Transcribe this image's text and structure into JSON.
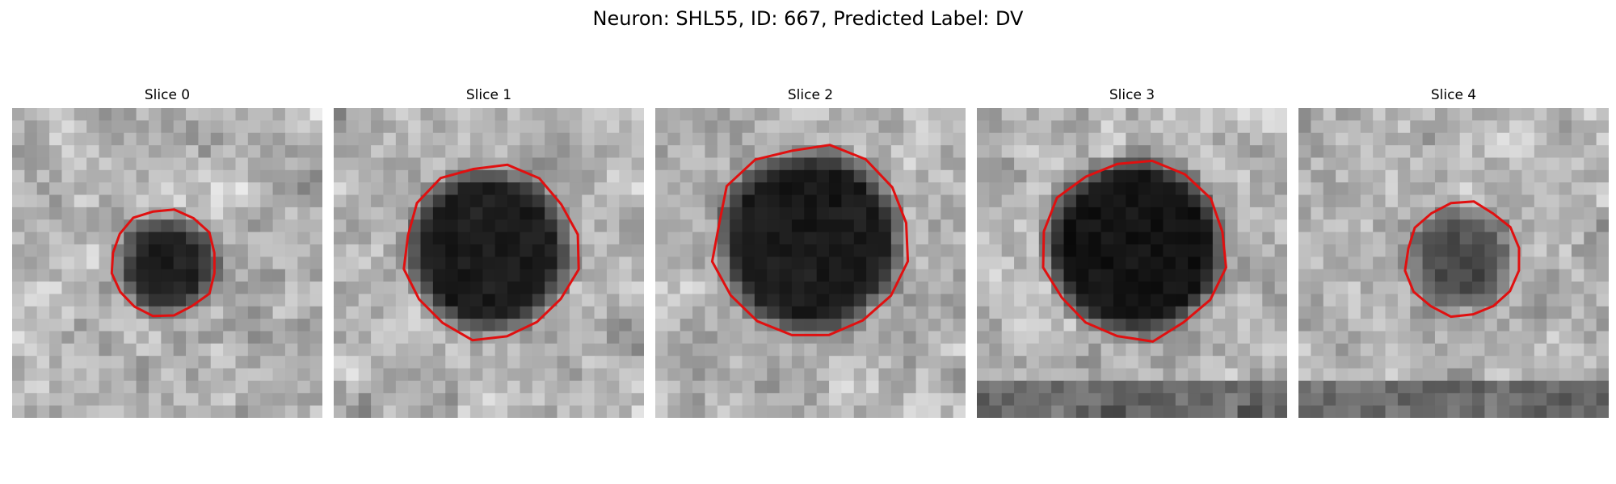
{
  "figure": {
    "title": "Neuron: SHL55, ID: 667, Predicted Label: DV"
  },
  "panels": [
    {
      "title": "Slice 0",
      "blob": {
        "cx": 12.5,
        "cy": 12.8,
        "r": 3.6,
        "depth": 0.85
      },
      "contour_r": 4.3,
      "contour_cx": 12.2,
      "contour_cy": 12.5,
      "bottom_dark": false
    },
    {
      "title": "Slice 1",
      "blob": {
        "cx": 12.5,
        "cy": 11.5,
        "r": 6.2,
        "depth": 0.9
      },
      "contour_r": 7.0,
      "contour_cx": 12.6,
      "contour_cy": 11.6,
      "bottom_dark": false
    },
    {
      "title": "Slice 2",
      "blob": {
        "cx": 12.5,
        "cy": 10.8,
        "r": 7.0,
        "depth": 0.9
      },
      "contour_r": 7.8,
      "contour_cx": 12.5,
      "contour_cy": 10.8,
      "bottom_dark": false
    },
    {
      "title": "Slice 3",
      "blob": {
        "cx": 12.7,
        "cy": 11.2,
        "r": 6.8,
        "depth": 0.95
      },
      "contour_r": 7.3,
      "contour_cx": 12.7,
      "contour_cy": 11.4,
      "bottom_dark": true
    },
    {
      "title": "Slice 4",
      "blob": {
        "cx": 13.2,
        "cy": 12.2,
        "r": 3.8,
        "depth": 0.6
      },
      "contour_r": 4.6,
      "contour_cx": 13.2,
      "contour_cy": 12.2,
      "bottom_dark": true
    }
  ],
  "colors": {
    "contour": "#e01010",
    "background": "#ffffff"
  }
}
